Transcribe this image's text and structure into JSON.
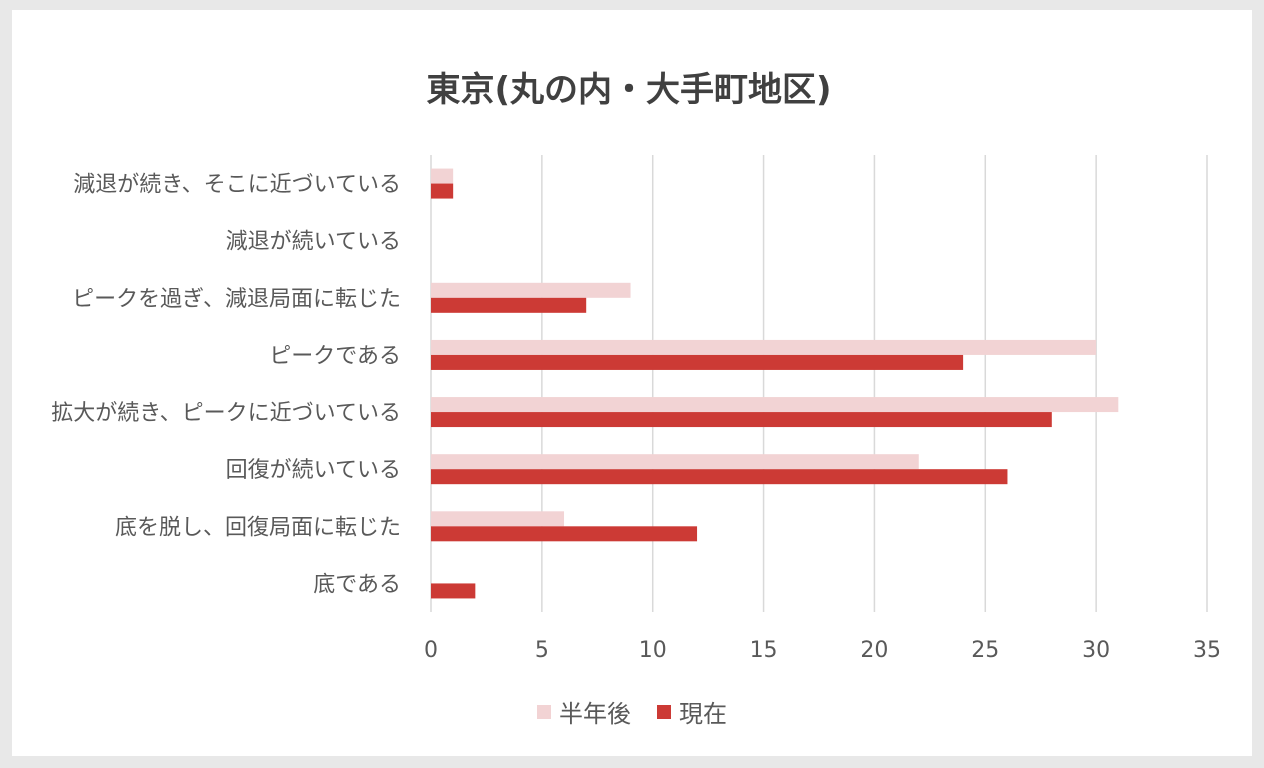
{
  "chart_data": {
    "type": "bar",
    "orientation": "horizontal",
    "title": "東京(丸の内・大手町地区)",
    "categories": [
      "減退が続き、そこに近づいている",
      "減退が続いている",
      "ピークを過ぎ、減退局面に転じた",
      "ピークである",
      "拡大が続き、ピークに近づいている",
      "回復が続いている",
      "底を脱し、回復局面に転じた",
      "底である"
    ],
    "series": [
      {
        "name": "半年後",
        "color": "#f2d3d4",
        "values": [
          1,
          0,
          9,
          30,
          31,
          22,
          6,
          0
        ]
      },
      {
        "name": "現在",
        "color": "#cc3a35",
        "values": [
          1,
          0,
          7,
          24,
          28,
          26,
          12,
          2
        ]
      }
    ],
    "xlim": [
      0,
      35
    ],
    "xticks": [
      "0",
      "5",
      "10",
      "15",
      "20",
      "25",
      "30",
      "35"
    ],
    "grid": true,
    "legend_position": "bottom",
    "legend_order": [
      "半年後",
      "現在"
    ]
  }
}
